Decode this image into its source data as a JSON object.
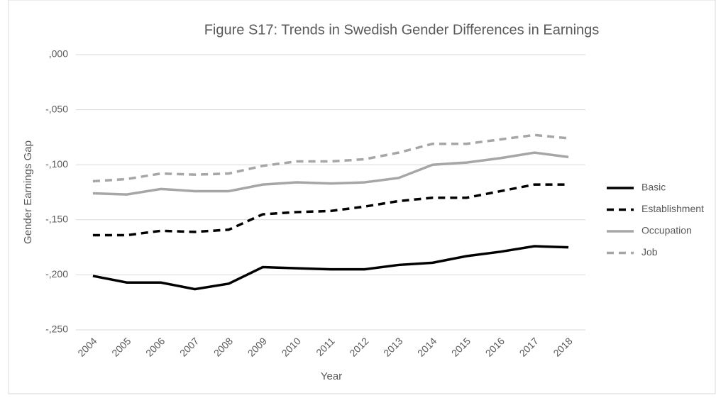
{
  "chart_data": {
    "type": "line",
    "title": "Figure S17: Trends in Swedish Gender Differences in Earnings",
    "x_label": "Year",
    "y_label": "Gender Earnings Gap",
    "categories": [
      "2004",
      "2005",
      "2006",
      "2007",
      "2008",
      "2009",
      "2010",
      "2011",
      "2012",
      "2013",
      "2014",
      "2015",
      "2016",
      "2017",
      "2018"
    ],
    "series": [
      {
        "name": "Basic",
        "color": "#000000",
        "dash": false,
        "values": [
          -0.201,
          -0.207,
          -0.207,
          -0.213,
          -0.208,
          -0.193,
          -0.194,
          -0.195,
          -0.195,
          -0.191,
          -0.189,
          -0.183,
          -0.179,
          -0.174,
          -0.175
        ]
      },
      {
        "name": "Establishment",
        "color": "#000000",
        "dash": true,
        "values": [
          -0.164,
          -0.164,
          -0.16,
          -0.161,
          -0.159,
          -0.145,
          -0.143,
          -0.142,
          -0.138,
          -0.133,
          -0.13,
          -0.13,
          -0.124,
          -0.118,
          -0.118
        ]
      },
      {
        "name": "Occupation",
        "color": "#a6a6a6",
        "dash": false,
        "values": [
          -0.126,
          -0.127,
          -0.122,
          -0.124,
          -0.124,
          -0.118,
          -0.116,
          -0.117,
          -0.116,
          -0.112,
          -0.1,
          -0.098,
          -0.094,
          -0.089,
          -0.093
        ]
      },
      {
        "name": "Job",
        "color": "#a6a6a6",
        "dash": true,
        "values": [
          -0.115,
          -0.113,
          -0.108,
          -0.109,
          -0.108,
          -0.101,
          -0.097,
          -0.097,
          -0.095,
          -0.089,
          -0.081,
          -0.081,
          -0.077,
          -0.073,
          -0.076
        ]
      }
    ],
    "ylim": [
      -0.25,
      0
    ],
    "yticks": [
      {
        "value": -0.25,
        "label": "-,250"
      },
      {
        "value": -0.2,
        "label": "-,200"
      },
      {
        "value": -0.15,
        "label": "-,150"
      },
      {
        "value": -0.1,
        "label": "-,100"
      },
      {
        "value": -0.05,
        "label": "-,050"
      },
      {
        "value": 0,
        "label": ",000"
      }
    ],
    "grid": true,
    "legend": "right"
  }
}
